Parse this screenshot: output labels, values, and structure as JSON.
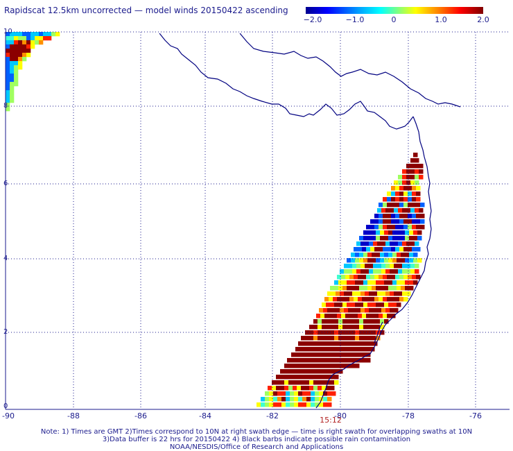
{
  "title": "Rapidscat 12.5km uncorrected — model winds 20150422 ascending",
  "colorbar": {
    "ticks": [
      "−2.0",
      "−1.0",
      "0",
      "1.0",
      "2.0"
    ],
    "colors": [
      "#00008f",
      "#0000ff",
      "#00a0ff",
      "#00ffff",
      "#80ff80",
      "#ffff00",
      "#ff8000",
      "#ff0000",
      "#800000"
    ]
  },
  "axes": {
    "x_ticks": [
      "-90",
      "-88",
      "-86",
      "-84",
      "-82",
      "-80",
      "-78",
      "-76"
    ],
    "y_ticks": [
      "10",
      "8",
      "6",
      "4",
      "2",
      "0"
    ],
    "xlim": [
      -90,
      -75.5
    ],
    "ylim": [
      0,
      10
    ],
    "grid": true
  },
  "swath_time": "15:12",
  "notes": [
    "Note: 1) Times are GMT 2)Times correspond to 10N at right swath edge — time is right swath for overlapping swaths at 10N",
    "3)Data buffer is 22 hrs for 20150422 4) Black barbs indicate possible rain contamination",
    "NOAA/NESDIS/Office of Research and Applications"
  ],
  "colors": {
    "text": "#1a1a8c",
    "coast": "#000080",
    "grid": "#1a1a8c",
    "time": "#b22222"
  }
}
